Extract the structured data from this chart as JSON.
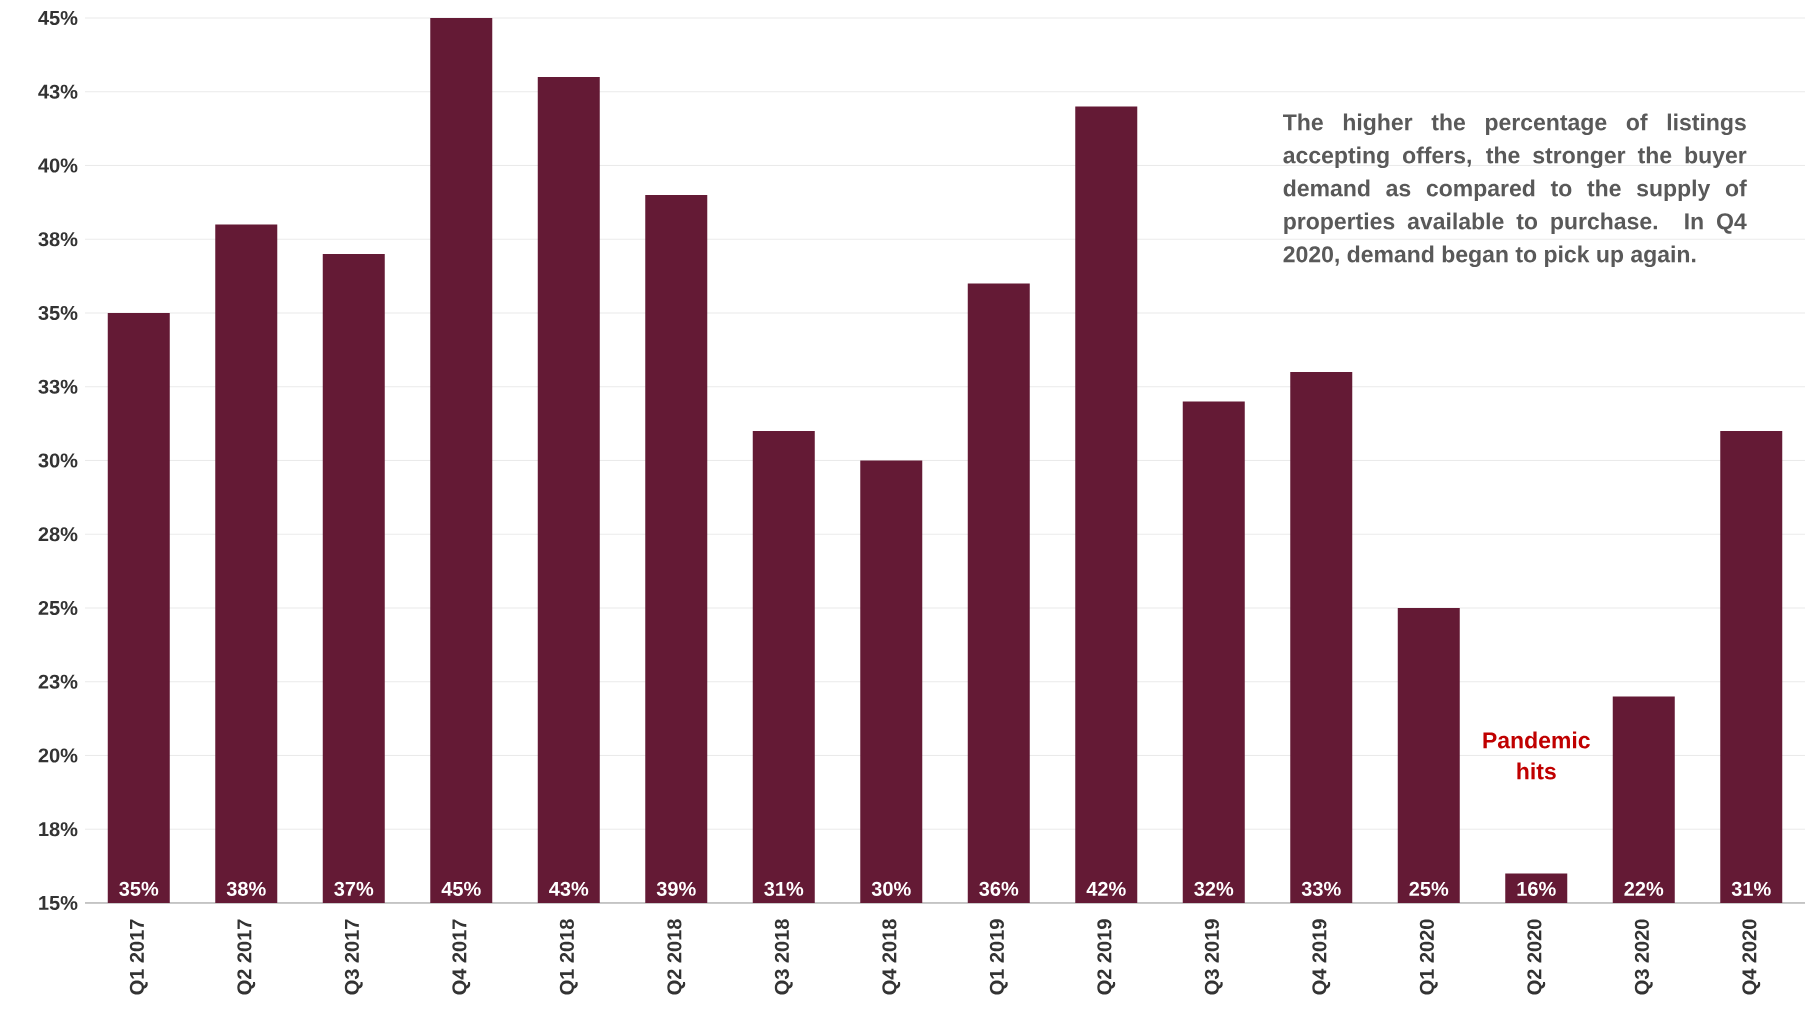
{
  "chart_data": {
    "type": "bar",
    "categories": [
      "Q1 2017",
      "Q2 2017",
      "Q3 2017",
      "Q4 2017",
      "Q1 2018",
      "Q2 2018",
      "Q3 2018",
      "Q4 2018",
      "Q1 2019",
      "Q2 2019",
      "Q3 2019",
      "Q4 2019",
      "Q1 2020",
      "Q2 2020",
      "Q3 2020",
      "Q4 2020"
    ],
    "values": [
      35,
      38,
      37,
      45,
      43,
      39,
      31,
      30,
      36,
      42,
      32,
      33,
      25,
      16,
      22,
      31
    ],
    "value_labels": [
      "35%",
      "38%",
      "37%",
      "45%",
      "43%",
      "39%",
      "31%",
      "30%",
      "36%",
      "42%",
      "32%",
      "33%",
      "25%",
      "16%",
      "22%",
      "31%"
    ],
    "color": "#641a35",
    "ylim": [
      15,
      45
    ],
    "yticks": [
      {
        "value": 15,
        "label": "15%"
      },
      {
        "value": 17.5,
        "label": "18%"
      },
      {
        "value": 20,
        "label": "20%"
      },
      {
        "value": 22.5,
        "label": "23%"
      },
      {
        "value": 25,
        "label": "25%"
      },
      {
        "value": 27.5,
        "label": "28%"
      },
      {
        "value": 30,
        "label": "30%"
      },
      {
        "value": 32.5,
        "label": "33%"
      },
      {
        "value": 35,
        "label": "35%"
      },
      {
        "value": 37.5,
        "label": "38%"
      },
      {
        "value": 40,
        "label": "40%"
      },
      {
        "value": 42.5,
        "label": "43%"
      },
      {
        "value": 45,
        "label": "45%"
      }
    ],
    "grid": "y",
    "annotations": [
      "The higher the percentage of listings accepting offers, the stronger the buyer demand as compared to the supply of properties available to purchase. In Q4 2020, demand began to pick up again.",
      "Pandemic hits"
    ]
  }
}
